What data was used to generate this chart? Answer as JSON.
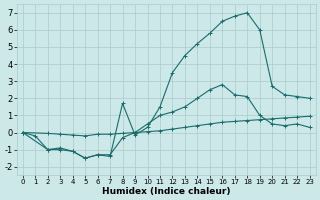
{
  "xlabel": "Humidex (Indice chaleur)",
  "bg_color": "#cce8e8",
  "grid_color": "#aacccc",
  "line_color": "#1a6b6b",
  "xlim": [
    -0.5,
    23.5
  ],
  "ylim": [
    -2.5,
    7.5
  ],
  "xticks": [
    0,
    1,
    2,
    3,
    4,
    5,
    6,
    7,
    8,
    9,
    10,
    11,
    12,
    13,
    14,
    15,
    16,
    17,
    18,
    19,
    20,
    21,
    22,
    23
  ],
  "yticks": [
    -2,
    -1,
    0,
    1,
    2,
    3,
    4,
    5,
    6,
    7
  ],
  "line1_x": [
    0,
    1,
    2,
    3,
    4,
    5,
    6,
    7,
    8,
    9,
    10,
    11,
    12,
    13,
    14,
    15,
    16,
    17,
    18,
    19,
    20,
    21,
    22,
    23
  ],
  "line1_y": [
    0.0,
    -0.2,
    -1.0,
    -1.0,
    -1.1,
    -1.5,
    -1.3,
    -1.3,
    -0.3,
    0.0,
    0.5,
    1.0,
    1.2,
    1.5,
    2.0,
    2.5,
    2.8,
    2.2,
    2.1,
    1.0,
    0.5,
    0.4,
    0.5,
    0.3
  ],
  "line2_x": [
    0,
    2,
    3,
    4,
    5,
    6,
    7,
    8,
    9,
    10,
    11,
    12,
    13,
    14,
    15,
    16,
    17,
    18,
    19,
    20,
    21,
    22,
    23
  ],
  "line2_y": [
    0.0,
    -1.0,
    -0.9,
    -1.1,
    -1.5,
    -1.3,
    -1.4,
    1.7,
    -0.15,
    0.3,
    1.5,
    3.5,
    4.5,
    5.2,
    5.8,
    6.5,
    6.8,
    7.0,
    6.0,
    2.7,
    2.2,
    2.1,
    2.0
  ],
  "line3_x": [
    0,
    2,
    3,
    4,
    5,
    6,
    7,
    8,
    9,
    10,
    11,
    12,
    13,
    14,
    15,
    16,
    17,
    18,
    19,
    20,
    21,
    22,
    23
  ],
  "line3_y": [
    0.0,
    -0.05,
    -0.1,
    -0.15,
    -0.2,
    -0.1,
    -0.1,
    -0.05,
    0.0,
    0.05,
    0.1,
    0.2,
    0.3,
    0.4,
    0.5,
    0.6,
    0.65,
    0.7,
    0.75,
    0.8,
    0.85,
    0.9,
    0.95
  ]
}
